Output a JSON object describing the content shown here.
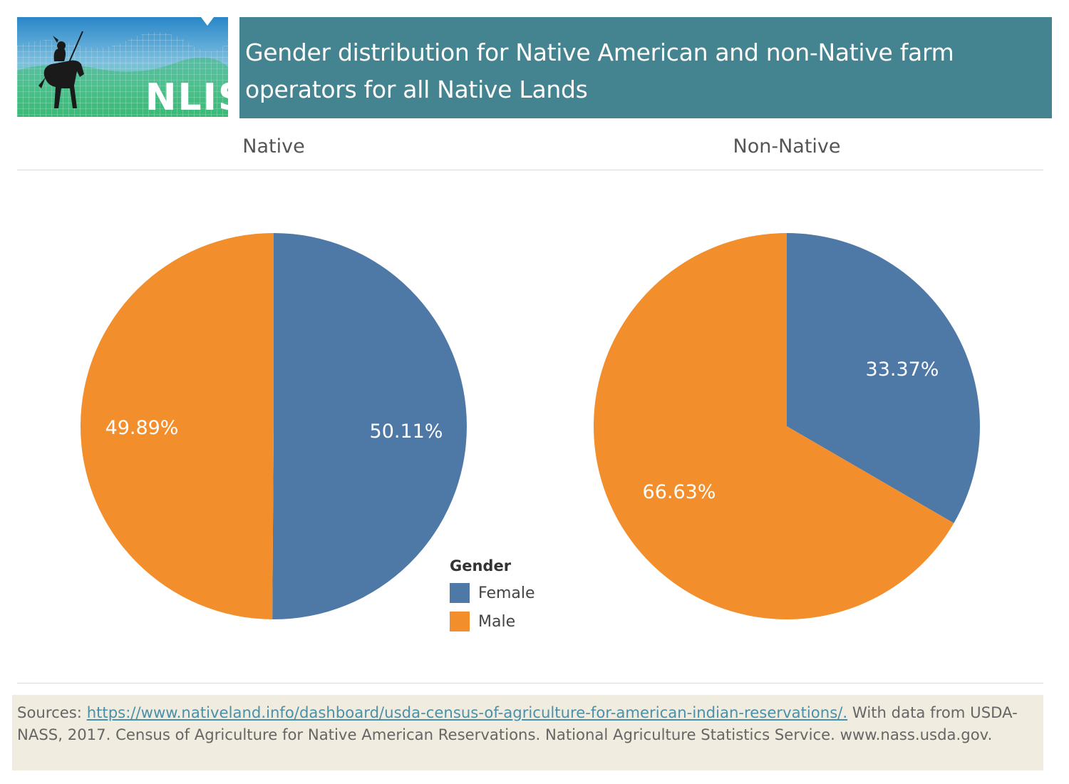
{
  "header": {
    "logo_text": "NLIS",
    "title": "Gender distribution for Native American and non-Native farm operators for all Native Lands"
  },
  "chart_data": [
    {
      "type": "pie",
      "title": "Native",
      "slices": [
        {
          "label": "Female",
          "value": 50.11,
          "display": "50.11%"
        },
        {
          "label": "Male",
          "value": 49.89,
          "display": "49.89%"
        }
      ]
    },
    {
      "type": "pie",
      "title": "Non-Native",
      "slices": [
        {
          "label": "Female",
          "value": 33.37,
          "display": "33.37%"
        },
        {
          "label": "Male",
          "value": 66.63,
          "display": "66.63%"
        }
      ]
    }
  ],
  "legend": {
    "title": "Gender",
    "placement": "bottom-center",
    "items": [
      {
        "label": "Female",
        "color": "#4e79a7"
      },
      {
        "label": "Male",
        "color": "#f28e2b"
      }
    ]
  },
  "sources": {
    "prefix": "Sources: ",
    "link_text": "https://www.nativeland.info/dashboard/usda-census-of-agriculture-for-american-indian-reservations/.",
    "suffix": " With data from USDA-NASS, 2017. Census of Agriculture for Native American Reservations. National Agriculture Statistics Service. www.nass.usda.gov."
  }
}
